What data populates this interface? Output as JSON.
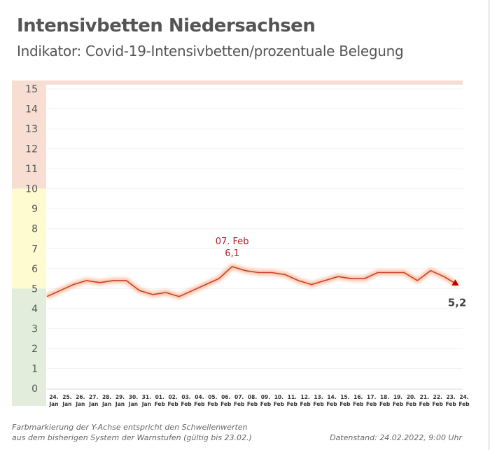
{
  "header": {
    "title": "Intensivbetten Niedersachsen",
    "subtitle": "Indikator: Covid-19-Intensivbetten/prozentuale Belegung"
  },
  "footer": {
    "note_line1": "Farbmarkierung der Y-Achse entspricht den Schwellenwerten",
    "note_line2": "aus dem bisherigen System der Warnstufen (gültig bis 23.02.)",
    "datenstand": "Datenstand: 24.02.2022, 9:00 Uhr"
  },
  "colors": {
    "band_high": "#f8ddd2",
    "band_mid": "#fdfbcf",
    "band_low": "#e2eedb",
    "line": "#c8442a",
    "glow": "#f9c3a8",
    "annotation": "#b0202a",
    "end_marker": "#c00000",
    "axis_text": "#555555"
  },
  "chart_data": {
    "type": "line",
    "title": "Intensivbetten Niedersachsen",
    "subtitle": "Indikator: Covid-19-Intensivbetten/prozentuale Belegung",
    "xlabel": "",
    "ylabel": "",
    "ylim": [
      0,
      15
    ],
    "yticks": [
      "0",
      "1",
      "2",
      "3",
      "4",
      "5",
      "6",
      "7",
      "8",
      "9",
      "10",
      "11",
      "12",
      "13",
      "14",
      "15"
    ],
    "grid": true,
    "threshold_bands": [
      {
        "from": 0,
        "to": 5,
        "level": "low"
      },
      {
        "from": 5,
        "to": 10,
        "level": "mid"
      },
      {
        "from": 10,
        "to": 15,
        "level": "high"
      }
    ],
    "categories": [
      {
        "day": "24.",
        "month": "Jan"
      },
      {
        "day": "25.",
        "month": "Jan"
      },
      {
        "day": "26.",
        "month": "Jan"
      },
      {
        "day": "27.",
        "month": "Jan"
      },
      {
        "day": "28.",
        "month": "Jan"
      },
      {
        "day": "29.",
        "month": "Jan"
      },
      {
        "day": "30.",
        "month": "Jan"
      },
      {
        "day": "31.",
        "month": "Jan"
      },
      {
        "day": "01.",
        "month": "Feb"
      },
      {
        "day": "02.",
        "month": "Feb"
      },
      {
        "day": "03.",
        "month": "Feb"
      },
      {
        "day": "04.",
        "month": "Feb"
      },
      {
        "day": "05.",
        "month": "Feb"
      },
      {
        "day": "06.",
        "month": "Feb"
      },
      {
        "day": "07.",
        "month": "Feb"
      },
      {
        "day": "08.",
        "month": "Feb"
      },
      {
        "day": "09.",
        "month": "Feb"
      },
      {
        "day": "10.",
        "month": "Feb"
      },
      {
        "day": "11.",
        "month": "Feb"
      },
      {
        "day": "12.",
        "month": "Feb"
      },
      {
        "day": "13.",
        "month": "Feb"
      },
      {
        "day": "14.",
        "month": "Feb"
      },
      {
        "day": "15.",
        "month": "Feb"
      },
      {
        "day": "16.",
        "month": "Feb"
      },
      {
        "day": "17.",
        "month": "Feb"
      },
      {
        "day": "18.",
        "month": "Feb"
      },
      {
        "day": "19.",
        "month": "Feb"
      },
      {
        "day": "20.",
        "month": "Feb"
      },
      {
        "day": "21.",
        "month": "Feb"
      },
      {
        "day": "22.",
        "month": "Feb"
      },
      {
        "day": "23.",
        "month": "Feb"
      },
      {
        "day": "24.",
        "month": "Feb"
      }
    ],
    "series": [
      {
        "name": "Covid-19-Intensivbetten/prozentuale Belegung",
        "values": [
          4.6,
          4.9,
          5.2,
          5.4,
          5.3,
          5.4,
          5.4,
          4.9,
          4.7,
          4.8,
          4.6,
          4.9,
          5.2,
          5.5,
          6.1,
          5.9,
          5.8,
          5.8,
          5.7,
          5.4,
          5.2,
          5.4,
          5.6,
          5.5,
          5.5,
          5.8,
          5.8,
          5.8,
          5.4,
          5.9,
          5.6,
          5.2
        ]
      }
    ],
    "annotations": [
      {
        "index": 14,
        "label_date": "07. Feb",
        "label_value": "6,1"
      },
      {
        "index": 31,
        "label_value": "5,2"
      }
    ]
  }
}
